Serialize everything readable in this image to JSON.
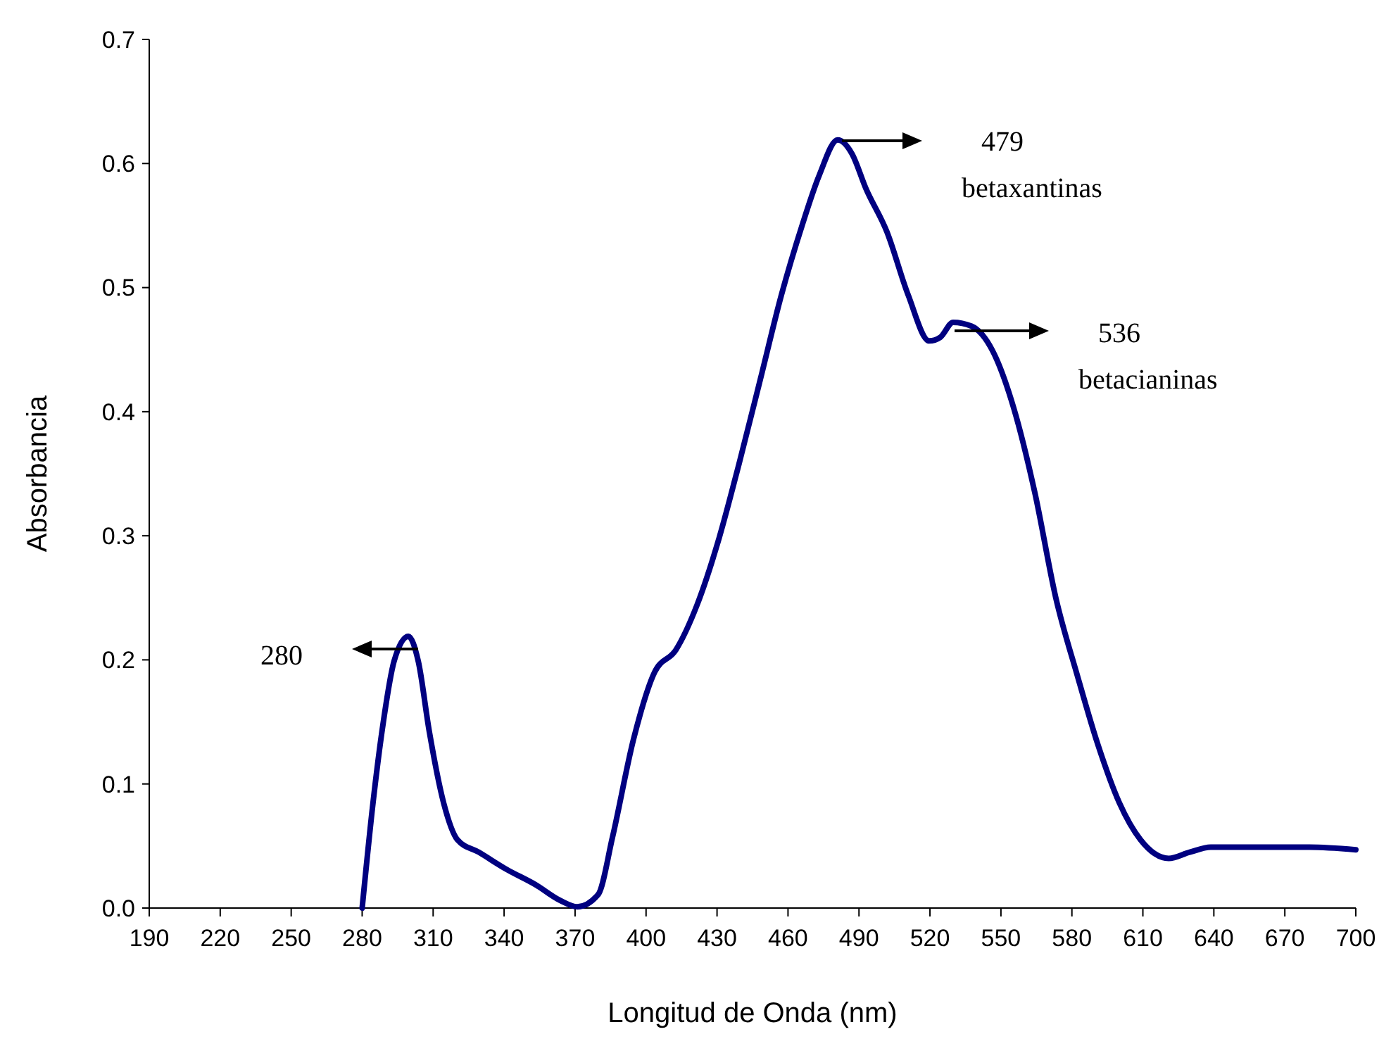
{
  "chart_data": {
    "type": "line",
    "xlabel": "Longitud de Onda (nm)",
    "ylabel": "Absorbancia",
    "xlim": [
      190,
      700
    ],
    "xticks": [
      190,
      220,
      250,
      280,
      310,
      340,
      370,
      400,
      430,
      460,
      490,
      520,
      550,
      580,
      610,
      640,
      670,
      700
    ],
    "ylim": [
      0,
      0.7
    ],
    "yticks": [
      {
        "value": 0,
        "label": "0.0"
      },
      0.1,
      0.2,
      0.3,
      0.4,
      0.5,
      0.6,
      0.7
    ],
    "grid": false,
    "marker": "none",
    "line_style": "solid",
    "series": [
      {
        "color": "#000080",
        "x": [
          280,
          284.6,
          288.8,
          293.5,
          299.5,
          303.7,
          308.4,
          314.4,
          320.3,
          329.3,
          341.2,
          353.1,
          363.8,
          370.9,
          379.8,
          385.8,
          394.7,
          403.6,
          412.6,
          421.5,
          430.4,
          439.3,
          448.3,
          457.2,
          466.1,
          473.3,
          481,
          487,
          492.9,
          501.8,
          510.8,
          519.7,
          524.4,
          529.8,
          537.5,
          546.5,
          555.4,
          564.3,
          573.2,
          582.2,
          591.1,
          600,
          609,
          620.9,
          629.8,
          638.7,
          680.4,
          700
        ],
        "values": [
          0,
          0.085,
          0.148,
          0.199,
          0.219,
          0.199,
          0.142,
          0.085,
          0.055,
          0.045,
          0.031,
          0.019,
          0.006,
          0.001,
          0.011,
          0.057,
          0.136,
          0.19,
          0.208,
          0.244,
          0.295,
          0.358,
          0.426,
          0.494,
          0.551,
          0.591,
          0.619,
          0.608,
          0.58,
          0.545,
          0.494,
          0.457,
          0.46,
          0.472,
          0.469,
          0.449,
          0.403,
          0.335,
          0.25,
          0.188,
          0.131,
          0.085,
          0.055,
          0.04,
          0.045,
          0.049,
          0.049,
          0.047
        ]
      }
    ],
    "annotations": [
      "280",
      "479\nbetaxantinas",
      "536\nbetacianinas"
    ]
  }
}
